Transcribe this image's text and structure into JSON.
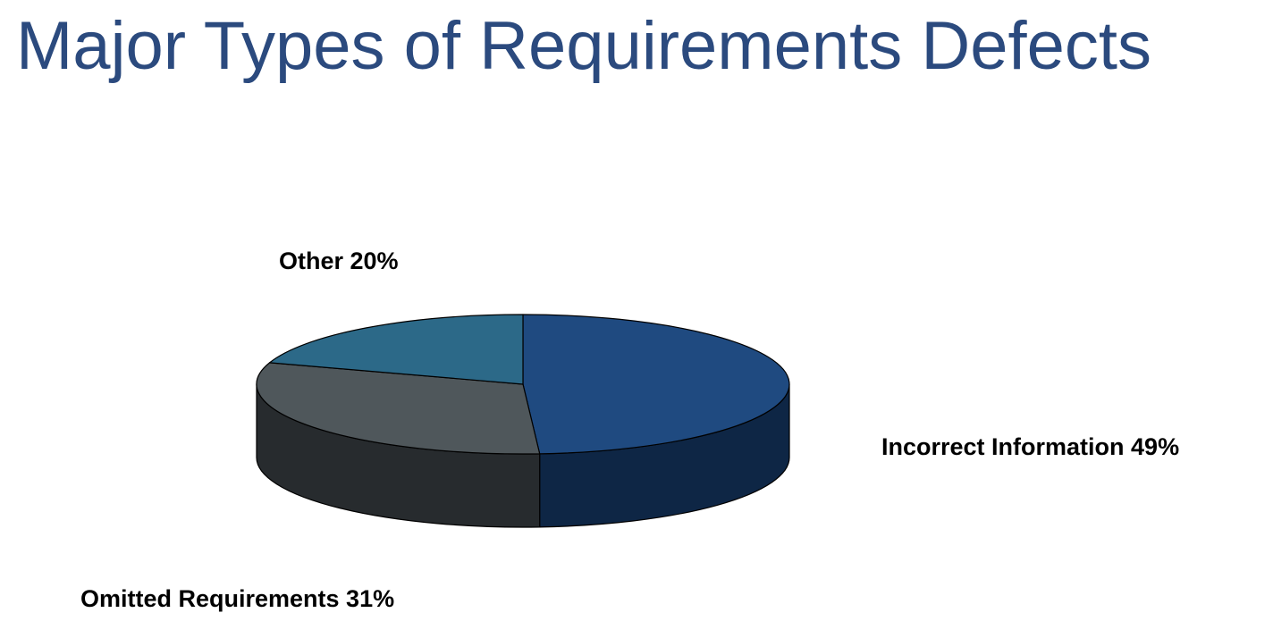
{
  "title": "Major Types of Requirements Defects",
  "chart_data": {
    "type": "pie",
    "style": "3d",
    "categories": [
      "Incorrect Information",
      "Omitted Requirements",
      "Other"
    ],
    "values": [
      49,
      31,
      20
    ],
    "labels": [
      "Incorrect Information 49%",
      "Omitted Requirements 31%",
      "Other 20%"
    ],
    "colors": [
      "#1f4a80",
      "#4f575b",
      "#2c6988"
    ],
    "side_colors": [
      "#0e2645",
      "#272b2e",
      "#1b3f52"
    ],
    "legend": "none"
  }
}
